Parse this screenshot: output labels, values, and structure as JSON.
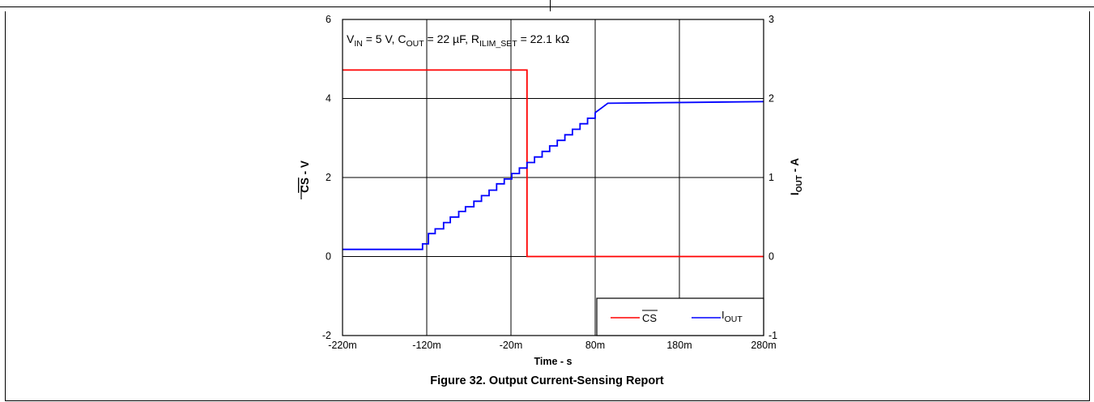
{
  "figure_caption": "Figure 32.  Output Current-Sensing Report",
  "chart_data": {
    "type": "line",
    "annotation_parts": {
      "vin": "V",
      "vin_sub": "IN",
      "vin_val": " = 5 V, ",
      "cout": "C",
      "cout_sub": "OUT",
      "cout_val": " = 22 µF, ",
      "rilim": "R",
      "rilim_sub": "ILIM_SET",
      "rilim_val": " = 22.1 kΩ"
    },
    "xlabel": "Time - s",
    "ylabel_left": "CS - V",
    "ylabel_left_main": "CS",
    "ylabel_left_rest": " - V",
    "ylabel_right_main": "I",
    "ylabel_right_sub": "OUT",
    "ylabel_right_rest": " - A",
    "x_ticks": [
      -220,
      -120,
      -20,
      80,
      180,
      280
    ],
    "x_tick_labels": [
      "-220m",
      "-120m",
      "-20m",
      "80m",
      "180m",
      "280m"
    ],
    "y_left_ticks": [
      -2,
      0,
      2,
      4,
      6
    ],
    "y_left_tick_labels": [
      "-2",
      "0",
      "2",
      "4",
      "6"
    ],
    "y_right_ticks": [
      -1,
      0,
      1,
      2,
      3
    ],
    "y_right_tick_labels": [
      "-1",
      "0",
      "1",
      "2",
      "3"
    ],
    "xlim": [
      -220,
      280
    ],
    "ylim_left": [
      -2,
      6
    ],
    "ylim_right": [
      -1,
      3
    ],
    "grid": true,
    "legend_position": "bottom-right",
    "series": [
      {
        "name": "CS",
        "axis": "left",
        "color": "#ff0000",
        "x": [
          -220,
          -1,
          -1,
          280
        ],
        "y": [
          4.72,
          4.72,
          0.0,
          0.0
        ]
      },
      {
        "name": "IOUT",
        "axis": "right",
        "color": "#0000ff",
        "x": [
          -220,
          -125,
          -125,
          -118,
          -118,
          -110,
          -110,
          -100,
          -100,
          -92,
          -92,
          -82,
          -82,
          -74,
          -74,
          -64,
          -64,
          -55,
          -55,
          -46,
          -46,
          -37,
          -37,
          -28,
          -28,
          -19,
          -19,
          -10,
          -10,
          -1,
          -1,
          8,
          8,
          17,
          17,
          26,
          26,
          35,
          35,
          44,
          44,
          53,
          53,
          62,
          62,
          71,
          71,
          80,
          80,
          90,
          95,
          280
        ],
        "y": [
          0.09,
          0.09,
          0.16,
          0.16,
          0.29,
          0.29,
          0.35,
          0.35,
          0.43,
          0.43,
          0.5,
          0.5,
          0.57,
          0.57,
          0.63,
          0.63,
          0.7,
          0.7,
          0.77,
          0.77,
          0.84,
          0.84,
          0.92,
          0.92,
          0.98,
          0.98,
          1.05,
          1.05,
          1.12,
          1.12,
          1.19,
          1.19,
          1.26,
          1.26,
          1.33,
          1.33,
          1.4,
          1.4,
          1.47,
          1.47,
          1.54,
          1.54,
          1.61,
          1.61,
          1.68,
          1.68,
          1.75,
          1.75,
          1.82,
          1.9,
          1.94,
          1.96
        ]
      }
    ],
    "legend": [
      {
        "label": "CS",
        "color": "#ff0000",
        "overline": true
      },
      {
        "label_main": "I",
        "label_sub": "OUT",
        "color": "#0000ff"
      }
    ]
  }
}
